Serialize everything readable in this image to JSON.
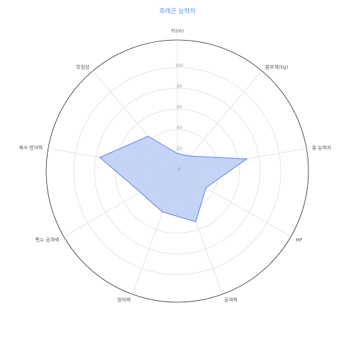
{
  "chart_data": {
    "type": "radar",
    "title": "쥬레곤 능력치",
    "axes": [
      "키(m)",
      "몸무게(kg)",
      "종 능력치",
      "HP",
      "공격력",
      "방어력",
      "특수 공격력",
      "특수 방어력",
      "민첩성"
    ],
    "ticks": [
      "0",
      "20",
      "40",
      "60",
      "80",
      "100"
    ],
    "range": [
      0,
      100
    ],
    "series": [
      {
        "values": [
          17,
          19,
          68,
          32,
          52,
          42,
          41,
          76,
          44
        ],
        "fill": "#c2d1f7",
        "stroke": "#6a8fe8"
      }
    ]
  }
}
